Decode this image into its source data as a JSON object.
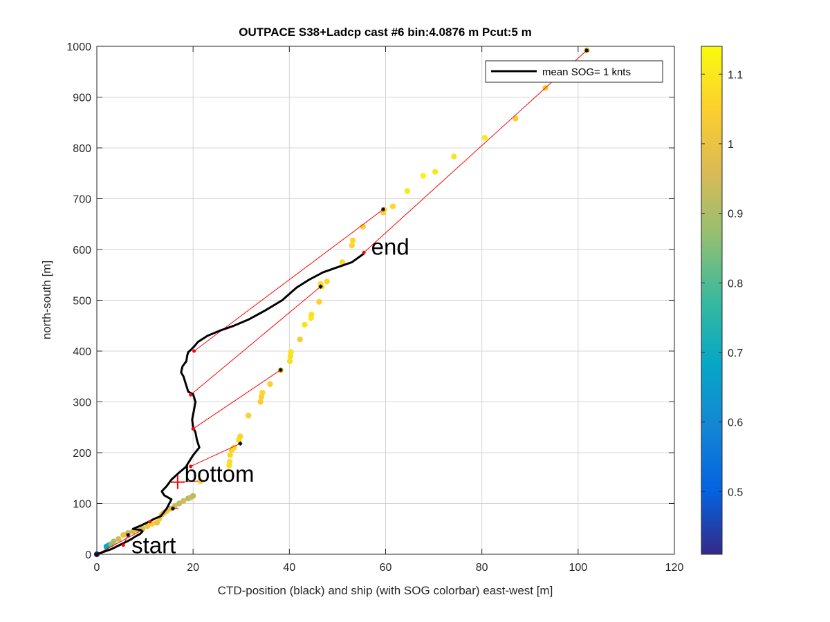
{
  "chart_data": {
    "type": "scatter",
    "title": "OUTPACE S38+Ladcp cast #6 bin:4.0876 m  Pcut:5 m",
    "xlabel": "CTD-position (black) and ship (with SOG colorbar) east-west [m]",
    "ylabel": "north-south [m]",
    "xlim": [
      0,
      120
    ],
    "ylim": [
      0,
      1000
    ],
    "xticks": [
      0,
      20,
      40,
      60,
      80,
      100,
      120
    ],
    "yticks": [
      0,
      100,
      200,
      300,
      400,
      500,
      600,
      700,
      800,
      900,
      1000
    ],
    "grid": true,
    "legend": {
      "position": "top-right",
      "entries": [
        "mean SOG=  1 knts"
      ]
    },
    "colorbar": {
      "label": "",
      "range": [
        0.41,
        1.14
      ],
      "ticks": [
        0.5,
        0.6,
        0.7,
        0.8,
        0.9,
        1,
        1.1
      ],
      "tick_labels": [
        "0.5",
        "0.6",
        "0.7",
        "0.8",
        "0.9",
        "1",
        "1.1"
      ],
      "colormap": [
        "#352a87",
        "#0363e1",
        "#1485d4",
        "#06a7c6",
        "#38b99e",
        "#92bf73",
        "#d9ba56",
        "#fcce2e",
        "#f9fb0e"
      ]
    },
    "annotations": [
      {
        "text": "start",
        "x": 7.2,
        "y": 2
      },
      {
        "text": "bottom",
        "x": 18.2,
        "y": 143
      },
      {
        "text": "end",
        "x": 57,
        "y": 590
      }
    ],
    "markers": {
      "bottom_cross": {
        "x": 16.8,
        "y": 142,
        "color": "#ff0000"
      }
    },
    "series": [
      {
        "name": "CTD-position (black)",
        "kind": "line",
        "color": "#000000",
        "x": [
          0,
          1.5,
          3,
          4.5,
          6,
          7.2,
          8,
          9,
          9.5,
          9,
          7.5,
          9.5,
          11,
          12,
          13.3,
          14.5,
          15.5,
          14,
          13.5,
          14.5,
          15.5,
          17,
          18.5,
          19,
          20,
          21.3,
          20.8,
          20.5,
          20,
          19.8,
          20.2,
          20.5,
          20,
          19,
          18.5,
          18,
          17.5,
          17.8,
          18.6,
          18.8,
          19,
          19.5,
          20.3,
          21,
          23,
          25.5,
          28.5,
          31.5,
          35,
          38.5,
          41.5,
          44,
          47,
          50,
          53,
          55.5
        ],
        "y": [
          0,
          5,
          10,
          17,
          24,
          30,
          35,
          40,
          45,
          48,
          50,
          58,
          65,
          70,
          75,
          90,
          108,
          116,
          124,
          134,
          147,
          160,
          172,
          180,
          195,
          210,
          225,
          240,
          250,
          265,
          285,
          300,
          315,
          320,
          335,
          350,
          358,
          370,
          380,
          392,
          398,
          402,
          410,
          418,
          430,
          440,
          450,
          462,
          480,
          500,
          525,
          540,
          555,
          565,
          575,
          592
        ]
      },
      {
        "name": "ship (with SOG colorbar)",
        "kind": "scatter",
        "x": [
          0,
          2,
          2.5,
          3,
          3.5,
          4.5,
          5.5,
          6.5,
          7.5,
          8.5,
          9.5,
          10.5,
          11.5,
          12.5,
          13,
          13.5,
          14,
          14.5,
          15.2,
          16.2,
          17.1,
          18,
          19,
          19.5,
          20,
          21.5,
          27.5,
          27.6,
          27.7,
          28,
          28.5,
          29.5,
          29.8,
          31.5,
          34,
          34.2,
          34.4,
          36,
          38.2,
          40.1,
          40.2,
          40.3,
          42.2,
          43.2,
          44.5,
          44.6,
          46.2,
          46.5,
          46.7,
          47.8,
          51,
          53,
          53.2,
          55.3,
          59.5,
          59.7,
          61.5,
          64.5,
          67.8,
          70.3,
          74.2,
          80.6,
          87,
          93.2,
          101.8
        ],
        "y": [
          0,
          15,
          18,
          20,
          25,
          30,
          38,
          42,
          45,
          48,
          50,
          55,
          60,
          62,
          70,
          78,
          82,
          85,
          90,
          95,
          100,
          105,
          110,
          112,
          115,
          144,
          175,
          182,
          195,
          205,
          210,
          225,
          232,
          273,
          300,
          310,
          318,
          335,
          362,
          380,
          390,
          398,
          423,
          452,
          465,
          472,
          497,
          532,
          527,
          537,
          575,
          608,
          618,
          645,
          673,
          678,
          685,
          715,
          745,
          753,
          783,
          820,
          858,
          918,
          992
        ],
        "sog": [
          0.42,
          0.68,
          0.7,
          0.86,
          0.9,
          0.95,
          1.0,
          0.93,
          0.95,
          1.0,
          0.98,
          1.02,
          1.05,
          1.0,
          1.04,
          1.02,
          1.0,
          1.02,
          0.98,
          0.95,
          0.92,
          0.95,
          0.9,
          0.95,
          0.92,
          1.05,
          1.08,
          1.08,
          1.07,
          1.06,
          1.07,
          1.08,
          1.06,
          1.05,
          1.04,
          1.05,
          1.06,
          1.05,
          1.04,
          1.08,
          1.08,
          1.09,
          1.04,
          1.09,
          1.1,
          1.09,
          1.05,
          1.08,
          1.07,
          1.06,
          1.07,
          1.06,
          1.07,
          1.05,
          1.04,
          1.08,
          1.07,
          1.1,
          1.12,
          1.1,
          1.09,
          1.1,
          1.04,
          1.03,
          1.0
        ]
      },
      {
        "name": "CTD-ship connections",
        "kind": "segments",
        "color": "#ff0000",
        "segments": [
          [
            0,
            0,
            9.5,
            48
          ],
          [
            5.5,
            18,
            6.5,
            38
          ],
          [
            7.5,
            50,
            11,
            64
          ],
          [
            17,
            90,
            15.8,
            90
          ],
          [
            21,
            144,
            16.8,
            142
          ],
          [
            19.5,
            173,
            29.8,
            218
          ],
          [
            20,
            247,
            38.2,
            363
          ],
          [
            19.5,
            314,
            46.5,
            527
          ],
          [
            20.2,
            400,
            59.5,
            679
          ],
          [
            55.5,
            594,
            101.8,
            992
          ]
        ],
        "endpoints_red": [
          [
            5.5,
            18
          ],
          [
            11,
            64
          ],
          [
            19.5,
            173
          ],
          [
            20,
            247
          ],
          [
            19.5,
            314
          ],
          [
            20.2,
            400
          ],
          [
            55.5,
            594
          ]
        ],
        "endpoints_star": [
          [
            0,
            0
          ],
          [
            6.5,
            38
          ],
          [
            15.8,
            90
          ],
          [
            29.8,
            218
          ],
          [
            38.2,
            363
          ],
          [
            46.5,
            527
          ],
          [
            59.5,
            679
          ],
          [
            101.8,
            992
          ]
        ]
      }
    ]
  }
}
